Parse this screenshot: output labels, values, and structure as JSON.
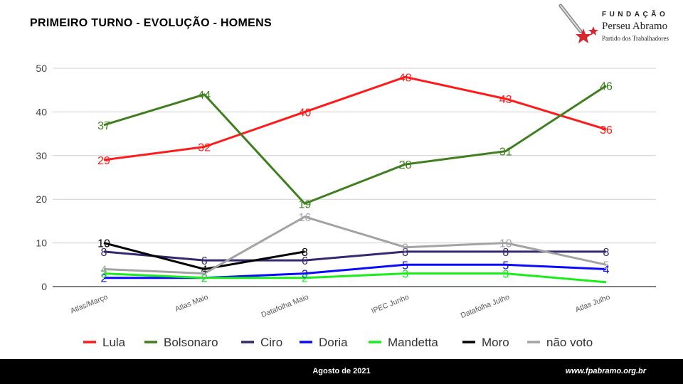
{
  "header": {
    "title": "PRIMEIRO TURNO - EVOLUÇÃO - HOMENS"
  },
  "logo": {
    "line1": "FUNDAÇÃO",
    "line2": "Perseu Abramo",
    "line3": "Partido dos Trabalhadores",
    "accent": "#d7262e"
  },
  "footer": {
    "date": "Agosto de 2021",
    "url": "www.fpabramo.org.br"
  },
  "chart_data": {
    "type": "line",
    "title": "PRIMEIRO TURNO - EVOLUÇÃO - HOMENS",
    "categories": [
      "Atlas/Março",
      "Atlas Maio",
      "Datafolha Maio",
      "IPEC Junho",
      "Datafolha Julho",
      "Atlas Julho"
    ],
    "ylim": [
      0,
      50
    ],
    "yticks": [
      0,
      10,
      20,
      30,
      40,
      50
    ],
    "grid": true,
    "legend_position": "bottom",
    "series": [
      {
        "name": "Lula",
        "color": "#ff1a1a",
        "values": [
          29,
          32,
          40,
          48,
          43,
          36
        ]
      },
      {
        "name": "Bolsonaro",
        "color": "#3f7f1f",
        "values": [
          37,
          44,
          19,
          28,
          31,
          46
        ]
      },
      {
        "name": "Ciro",
        "color": "#352a6f",
        "values": [
          8,
          6,
          6,
          8,
          8,
          8
        ]
      },
      {
        "name": "Doria",
        "color": "#0a0aff",
        "values": [
          2,
          2,
          3,
          5,
          5,
          4
        ]
      },
      {
        "name": "Mandetta",
        "color": "#1aee1a",
        "values": [
          3,
          2,
          2,
          3,
          3,
          1
        ]
      },
      {
        "name": "Moro",
        "color": "#000000",
        "values": [
          10,
          4,
          8,
          null,
          null,
          null
        ]
      },
      {
        "name": "não voto",
        "color": "#a3a3a3",
        "values": [
          4,
          3,
          16,
          9,
          10,
          5
        ]
      }
    ],
    "labeled_points": {
      "Lula": [
        true,
        true,
        true,
        true,
        true,
        true
      ],
      "Bolsonaro": [
        true,
        true,
        true,
        true,
        true,
        true
      ],
      "Ciro": [
        true,
        true,
        true,
        true,
        true,
        true
      ],
      "Doria": [
        true,
        true,
        true,
        true,
        true,
        true
      ],
      "Mandetta": [
        true,
        true,
        true,
        true,
        true,
        false
      ],
      "Moro": [
        true,
        true,
        true,
        false,
        false,
        false
      ],
      "não voto": [
        true,
        true,
        true,
        true,
        true,
        true
      ]
    }
  }
}
